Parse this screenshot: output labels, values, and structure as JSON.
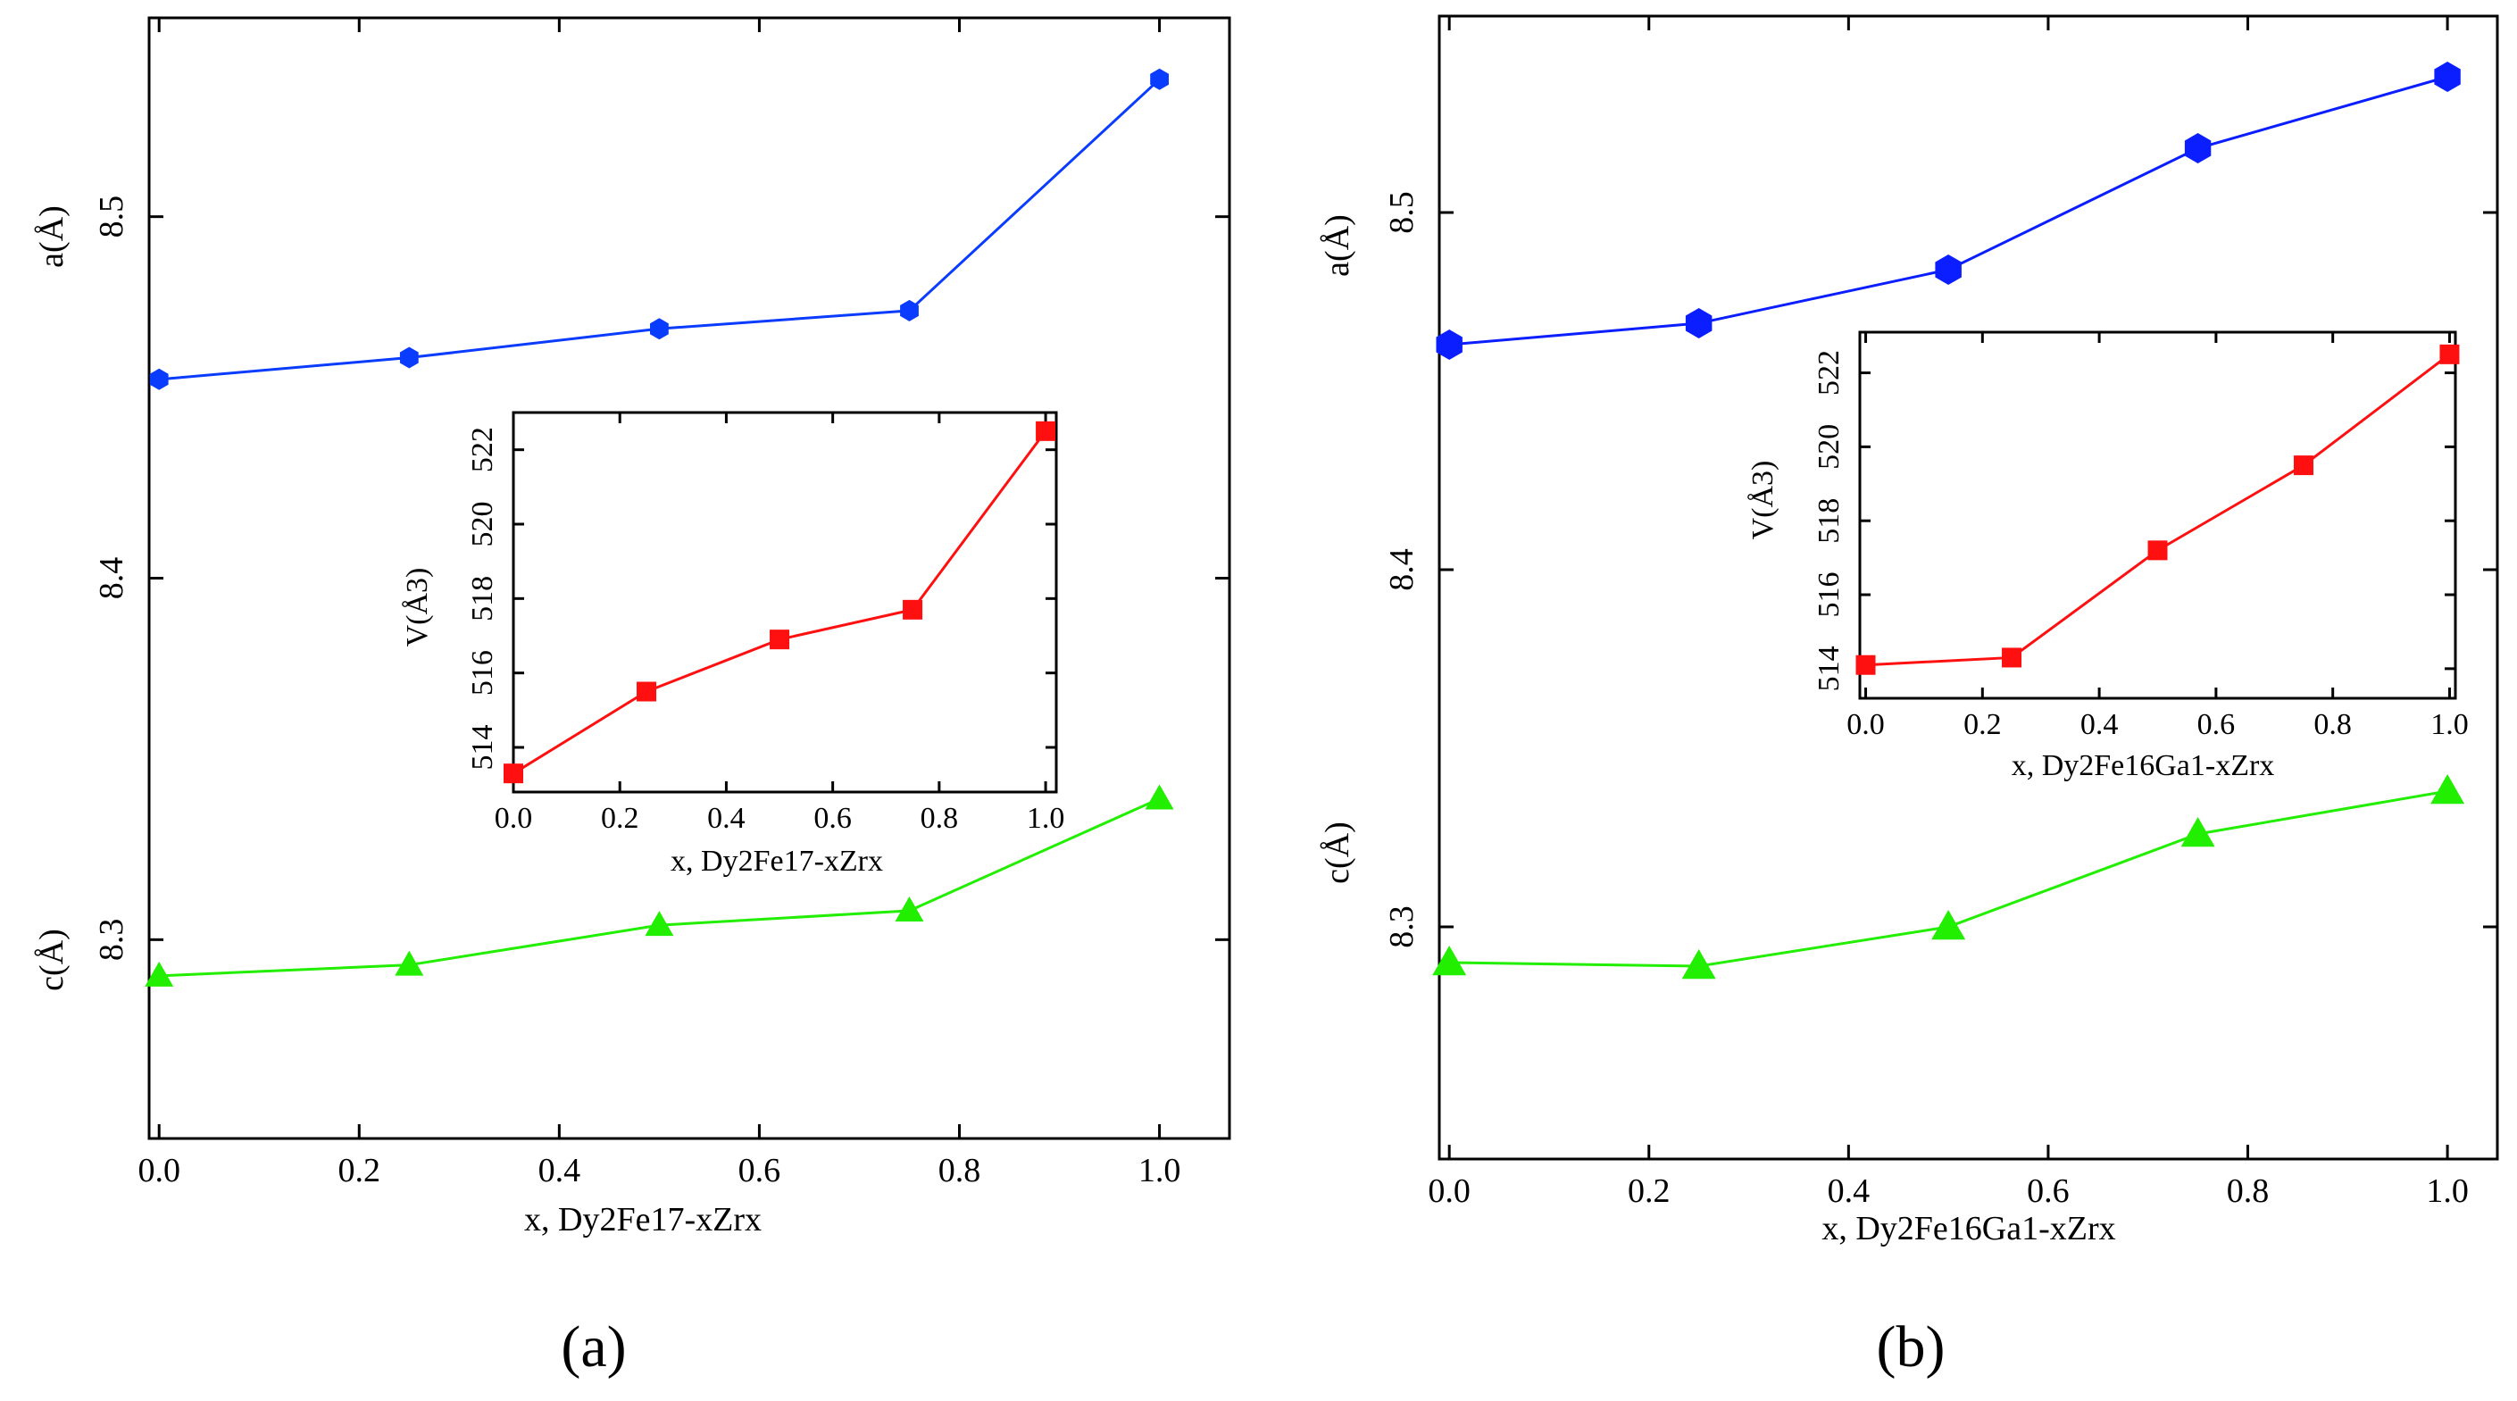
{
  "chart_data": [
    {
      "panel": "a",
      "caption": "(a)",
      "type": "line",
      "xlabel": "x, Dy2Fe17-xZrx",
      "xticks": [
        "0.0",
        "0.2",
        "0.4",
        "0.6",
        "0.8",
        "1.0"
      ],
      "xlim": [
        -0.01,
        1.07
      ],
      "ylim": [
        8.245,
        8.555
      ],
      "yticks": [
        "8.3",
        "8.4",
        "8.5"
      ],
      "ylabel_top": "a(Å)",
      "ylabel_bottom": "c(Å)",
      "series": [
        {
          "name": "a",
          "color": "#0a3cff",
          "marker": "hexagon",
          "x": [
            0.0,
            0.25,
            0.5,
            0.75,
            1.0
          ],
          "y": [
            8.455,
            8.461,
            8.469,
            8.474,
            8.538
          ]
        },
        {
          "name": "c",
          "color": "#22ee00",
          "marker": "triangle",
          "x": [
            0.0,
            0.25,
            0.5,
            0.75,
            1.0
          ],
          "y": [
            8.29,
            8.293,
            8.304,
            8.308,
            8.339
          ]
        }
      ],
      "inset": {
        "type": "line",
        "xlabel": "x, Dy2Fe17-xZrx",
        "ylabel": "V(Å3)",
        "xticks": [
          "0.0",
          "0.2",
          "0.4",
          "0.6",
          "0.8",
          "1.0"
        ],
        "yticks": [
          "514",
          "516",
          "518",
          "520",
          "522"
        ],
        "xlim": [
          0.0,
          1.02
        ],
        "ylim": [
          512.8,
          523.0
        ],
        "series": [
          {
            "name": "V",
            "color": "#ff1010",
            "marker": "square",
            "x": [
              0.0,
              0.25,
              0.5,
              0.75,
              1.0
            ],
            "y": [
              513.3,
              515.5,
              516.9,
              517.7,
              522.5
            ]
          }
        ]
      }
    },
    {
      "panel": "b",
      "caption": "(b)",
      "type": "line",
      "xlabel": "x, Dy2Fe16Ga1-xZrx",
      "xticks": [
        "0.0",
        "0.2",
        "0.4",
        "0.6",
        "0.8",
        "1.0"
      ],
      "xlim": [
        -0.01,
        1.05
      ],
      "ylim": [
        8.235,
        8.555
      ],
      "yticks": [
        "8.3",
        "8.4",
        "8.5"
      ],
      "ylabel_top": "a(Å)",
      "ylabel_bottom": "c(Å)",
      "series": [
        {
          "name": "a",
          "color": "#0a1eff",
          "marker": "hexagon",
          "x": [
            0.0,
            0.25,
            0.5,
            0.75,
            1.0
          ],
          "y": [
            8.463,
            8.469,
            8.484,
            8.518,
            8.538
          ]
        },
        {
          "name": "c",
          "color": "#22ee00",
          "marker": "triangle",
          "x": [
            0.0,
            0.25,
            0.5,
            0.75,
            1.0
          ],
          "y": [
            8.29,
            8.289,
            8.3,
            8.326,
            8.338
          ]
        }
      ],
      "inset": {
        "type": "line",
        "xlabel": "x, Dy2Fe16Ga1-xZrx",
        "ylabel": "V(Å3)",
        "xticks": [
          "0.0",
          "0.2",
          "0.4",
          "0.6",
          "0.8",
          "1.0"
        ],
        "yticks": [
          "514",
          "516",
          "518",
          "520",
          "522"
        ],
        "xlim": [
          -0.01,
          1.01
        ],
        "ylim": [
          513.2,
          523.1
        ],
        "series": [
          {
            "name": "V",
            "color": "#ff1010",
            "marker": "square",
            "x": [
              0.0,
              0.25,
              0.5,
              0.75,
              1.0
            ],
            "y": [
              514.1,
              514.3,
              517.2,
              519.5,
              522.5
            ]
          }
        ]
      }
    }
  ]
}
